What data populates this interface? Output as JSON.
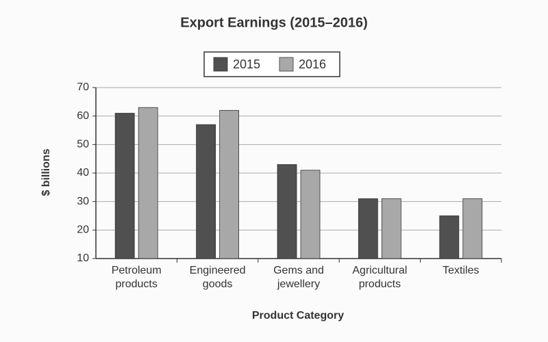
{
  "chart_data": {
    "type": "bar",
    "title": "Export Earnings (2015–2016)",
    "x_label": "Product Category",
    "y_label": "$ billions",
    "categories": [
      "Petroleum products",
      "Engineered goods",
      "Gems and jewellery",
      "Agricultural products",
      "Textiles"
    ],
    "series": [
      {
        "name": "2015",
        "color": "#505050",
        "values": [
          61,
          57,
          43,
          31,
          25
        ]
      },
      {
        "name": "2016",
        "color": "#a8a8a8",
        "values": [
          63,
          62,
          41,
          31,
          31
        ]
      }
    ],
    "ylim": [
      10,
      70
    ],
    "yticks": [
      10,
      20,
      30,
      40,
      50,
      60,
      70
    ],
    "grid": true
  }
}
